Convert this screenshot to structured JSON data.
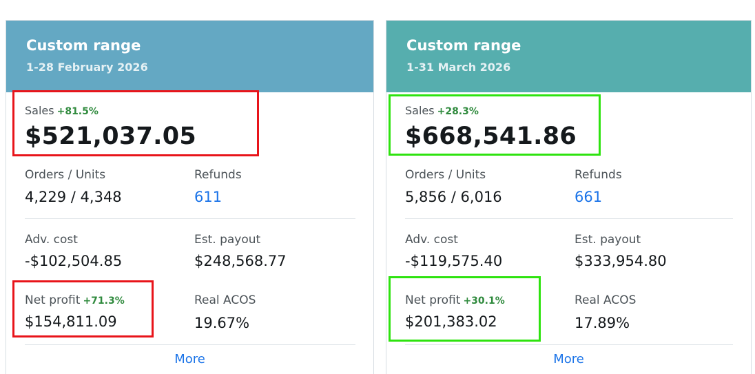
{
  "cards": [
    {
      "title": "Custom range",
      "date_range": "1-28 February 2026",
      "sales": {
        "label": "Sales",
        "change": "+81.5%",
        "value": "$521,037.05"
      },
      "orders_units": {
        "label": "Orders / Units",
        "value": "4,229 / 4,348"
      },
      "refunds": {
        "label": "Refunds",
        "value": "611"
      },
      "adv_cost": {
        "label": "Adv. cost",
        "value": "-$102,504.85"
      },
      "est_payout": {
        "label": "Est. payout",
        "value": "$248,568.77"
      },
      "net_profit": {
        "label": "Net profit",
        "change": "+71.3%",
        "value": "$154,811.09"
      },
      "real_acos": {
        "label": "Real ACOS",
        "value": "19.67%"
      },
      "more_label": "More",
      "header_color": "#64a8c3",
      "highlight_color": "#e8141a"
    },
    {
      "title": "Custom range",
      "date_range": "1-31 March 2026",
      "sales": {
        "label": "Sales",
        "change": "+28.3%",
        "value": "$668,541.86"
      },
      "orders_units": {
        "label": "Orders / Units",
        "value": "5,856 / 6,016"
      },
      "refunds": {
        "label": "Refunds",
        "value": "661"
      },
      "adv_cost": {
        "label": "Adv. cost",
        "value": "-$119,575.40"
      },
      "est_payout": {
        "label": "Est. payout",
        "value": "$333,954.80"
      },
      "net_profit": {
        "label": "Net profit",
        "change": "+30.1%",
        "value": "$201,383.02"
      },
      "real_acos": {
        "label": "Real ACOS",
        "value": "17.89%"
      },
      "more_label": "More",
      "header_color": "#56aeae",
      "highlight_color": "#2ee30f"
    }
  ],
  "colors": {
    "positive_change": "#2f8a3d",
    "link": "#1a73e8"
  }
}
